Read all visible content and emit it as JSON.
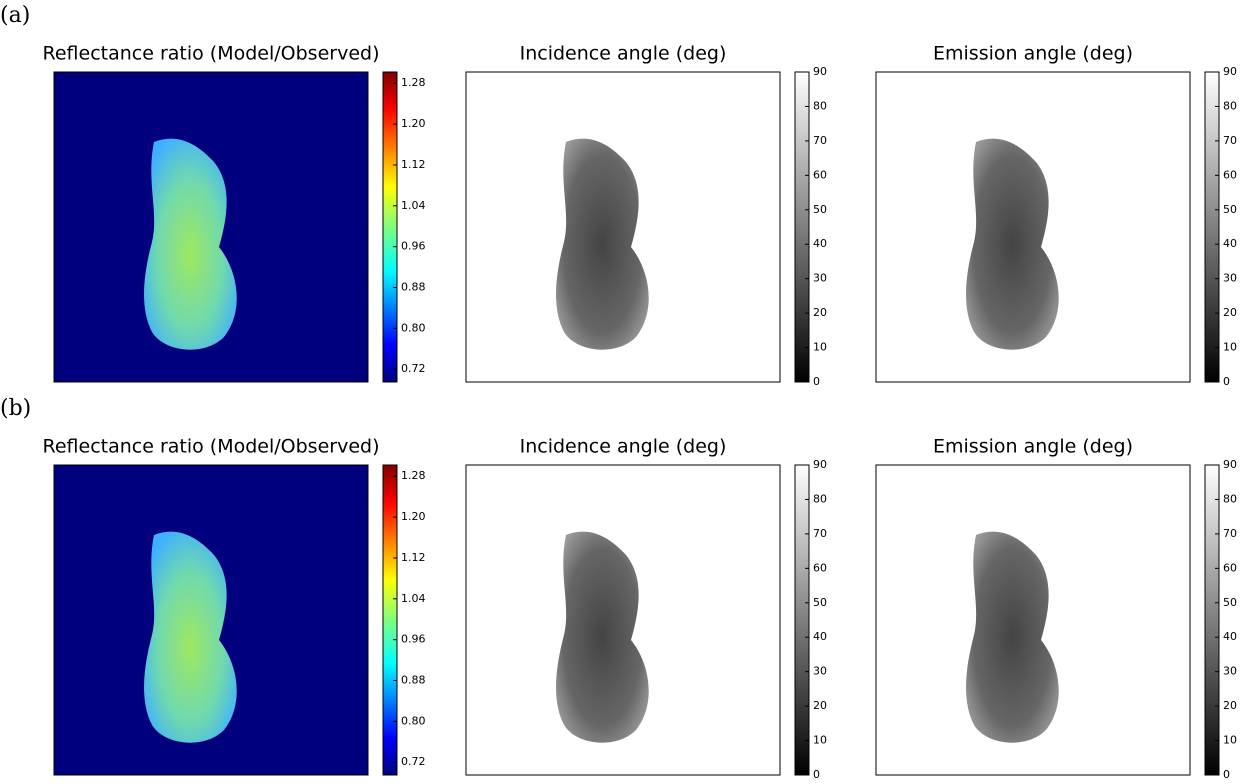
{
  "chart_data": [
    {
      "type": "heatmap",
      "panel_label": "(a)",
      "title": "Reflectance ratio (Model/Observed)",
      "colormap": "jet",
      "clim": [
        0.695,
        1.302
      ],
      "cticks": [
        0.72,
        {
          "value": 0.8,
          "label": "0.80"
        },
        0.88,
        0.96,
        1.04,
        1.12,
        {
          "value": 1.2,
          "label": "1.20"
        },
        1.28
      ]
    },
    {
      "type": "heatmap",
      "title": "Incidence angle (deg)",
      "colormap": "gray",
      "clim": [
        0,
        90
      ],
      "cticks": [
        0,
        10,
        20,
        30,
        40,
        50,
        60,
        70,
        80,
        90
      ]
    },
    {
      "type": "heatmap",
      "title": "Emission angle (deg)",
      "colormap": "gray",
      "clim": [
        0,
        90
      ],
      "cticks": [
        0,
        10,
        20,
        30,
        40,
        50,
        60,
        70,
        80,
        90
      ]
    },
    {
      "type": "heatmap",
      "panel_label": "(b)",
      "title": "Reflectance ratio (Model/Observed)",
      "colormap": "jet",
      "clim": [
        0.695,
        1.302
      ],
      "cticks": [
        0.72,
        {
          "value": 0.8,
          "label": "0.80"
        },
        0.88,
        0.96,
        1.04,
        1.12,
        {
          "value": 1.2,
          "label": "1.20"
        },
        1.28
      ]
    },
    {
      "type": "heatmap",
      "title": "Incidence angle (deg)",
      "colormap": "gray",
      "clim": [
        0,
        90
      ],
      "cticks": [
        0,
        10,
        20,
        30,
        40,
        50,
        60,
        70,
        80,
        90
      ]
    },
    {
      "type": "heatmap",
      "title": "Emission angle (deg)",
      "colormap": "gray",
      "clim": [
        0,
        90
      ],
      "cticks": [
        0,
        10,
        20,
        30,
        40,
        50,
        60,
        70,
        80,
        90
      ]
    }
  ]
}
